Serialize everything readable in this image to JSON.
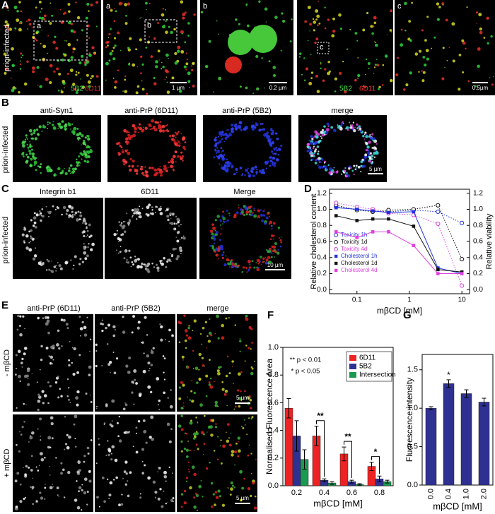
{
  "figure": {
    "panel_a": {
      "label": "A",
      "row_label": "prion-infected",
      "inset_labels": [
        "a",
        "a",
        "b",
        "b",
        "c",
        "c"
      ],
      "channels_1": [
        "5B2",
        "6D11"
      ],
      "channels_2": [
        "5B2",
        "6D11"
      ],
      "scale_bars": [
        "1 µm",
        "0.2 µm",
        "0.5µm"
      ]
    },
    "panel_b": {
      "label": "B",
      "row_label": "prion-infected",
      "titles": [
        "anti-Syn1",
        "anti-PrP (6D11)",
        "anti-PrP (5B2)",
        "merge"
      ],
      "scale_bar": "5 µm"
    },
    "panel_c": {
      "label": "C",
      "row_label": "prion-infected",
      "titles": [
        "Integrin b1",
        "6D11",
        "Merge"
      ],
      "scale_bar": "10 µm"
    },
    "panel_e": {
      "label": "E",
      "titles": [
        "anti-PrP (6D11)",
        "anti-PrP (5B2)",
        "merge"
      ],
      "row_labels": [
        "- mβCD",
        "+ mβCD"
      ],
      "scale_bars": [
        "5 µm",
        "5 µm"
      ]
    }
  },
  "chart_data": [
    {
      "label": "D",
      "type": "line",
      "xscale": "log",
      "xlabel": "mβCD [mM]",
      "ylabel": "Relative cholesterol content",
      "y2label": "Relative viability",
      "x": [
        0.04,
        0.1,
        0.2,
        0.4,
        1.2,
        3.5,
        10
      ],
      "xlim": [
        0.03,
        14
      ],
      "xticks": [
        0.1,
        1,
        10
      ],
      "ylim": [
        -0.05,
        1.25
      ],
      "yticks": [
        {
          "value": 0,
          "label": "0.0"
        },
        0.2,
        0.4,
        0.6,
        0.8,
        {
          "value": 1,
          "label": "1.0"
        },
        1.2
      ],
      "y2lim": [
        -0.05,
        1.25
      ],
      "y2ticks": [
        {
          "value": 0,
          "label": "0.0"
        },
        0.2,
        0.4,
        0.6,
        0.8,
        {
          "value": 1,
          "label": "1.0"
        },
        1.2
      ],
      "legend": "lower left",
      "series": [
        {
          "name": "Toxicity 1h",
          "color": "#2233dd",
          "marker": "open",
          "line_style": "dotted",
          "axis": "y2",
          "values": [
            1.03,
            1.0,
            0.98,
            0.97,
            0.99,
            0.97,
            0.83
          ]
        },
        {
          "name": "Toxicity 1d",
          "color": "#111111",
          "marker": "open",
          "line_style": "dotted",
          "axis": "y2",
          "values": [
            1.05,
            0.99,
            0.97,
            0.99,
            1.0,
            1.05,
            0.38
          ]
        },
        {
          "name": "Toxicity 4d",
          "color": "#e040e0",
          "marker": "open",
          "line_style": "dotted",
          "axis": "y2",
          "values": [
            1.08,
            1.03,
            1.0,
            0.95,
            0.93,
            0.82,
            0.05
          ]
        },
        {
          "name": "Cholesterol 1h",
          "color": "#2233dd",
          "marker": "filled",
          "line_style": "solid",
          "values": [
            1.02,
            1.0,
            0.98,
            0.96,
            0.97,
            0.27,
            0.2
          ]
        },
        {
          "name": "Cholesterol 1d",
          "color": "#111111",
          "marker": "filled",
          "line_style": "solid",
          "values": [
            0.92,
            0.86,
            0.88,
            0.88,
            0.79,
            0.25,
            0.22
          ]
        },
        {
          "name": "Cholesterol 4d",
          "color": "#e040e0",
          "marker": "filled",
          "line_style": "solid",
          "values": [
            0.72,
            0.65,
            0.72,
            0.72,
            0.55,
            0.2,
            0.2
          ]
        }
      ]
    },
    {
      "label": "F",
      "type": "bar",
      "xlabel": "mβCD [mM]",
      "ylabel": "Normalised Fluorescence Area",
      "categories": [
        "0.2",
        "0.4",
        "0.6",
        "0.8"
      ],
      "ylim": [
        0,
        1.0
      ],
      "yticks": [
        {
          "value": 0,
          "label": "0.0"
        },
        0.2,
        0.4,
        0.6,
        0.8,
        {
          "value": 1,
          "label": "1.0"
        }
      ],
      "legend": "upper right",
      "notes": [
        "** p < 0.01",
        "* p < 0.05"
      ],
      "significance": [
        null,
        "**",
        "**",
        "*"
      ],
      "series": [
        {
          "name": "6D11",
          "color": "#ee2222",
          "values": [
            0.56,
            0.36,
            0.23,
            0.14
          ],
          "errors": [
            0.07,
            0.07,
            0.05,
            0.03
          ]
        },
        {
          "name": "5B2",
          "color": "#2e3192",
          "values": [
            0.36,
            0.04,
            0.03,
            0.05
          ],
          "errors": [
            0.11,
            0.01,
            0.01,
            0.02
          ]
        },
        {
          "name": "Intersection",
          "color": "#1a9a50",
          "values": [
            0.19,
            0.02,
            0.01,
            0.03
          ],
          "errors": [
            0.07,
            0.01,
            0.005,
            0.01
          ]
        }
      ]
    },
    {
      "label": "G",
      "type": "bar",
      "xlabel": "mβCD [mM]",
      "ylabel": "Fluorescence intensity",
      "categories": [
        "0.0",
        "0.4",
        "1.0",
        "2.0"
      ],
      "ylim": [
        0,
        1.7
      ],
      "yticks": [
        {
          "value": 0,
          "label": "0.0"
        },
        0.5,
        {
          "value": 1,
          "label": "1.0"
        },
        1.5
      ],
      "significance": [
        null,
        "*",
        null,
        null
      ],
      "series": [
        {
          "color": "#2e3192",
          "values": [
            1.0,
            1.32,
            1.19,
            1.08
          ],
          "errors": [
            0.02,
            0.05,
            0.05,
            0.05
          ]
        }
      ]
    }
  ]
}
